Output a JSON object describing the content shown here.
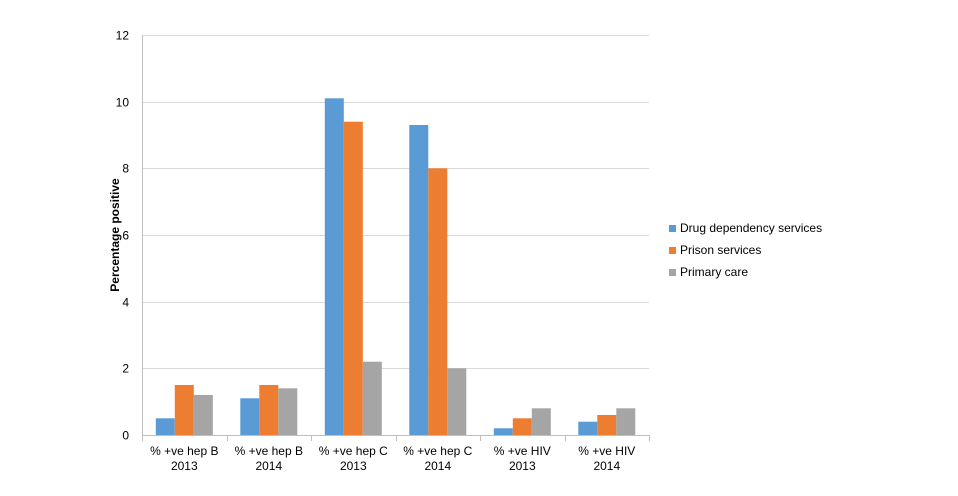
{
  "chart_data": {
    "type": "bar",
    "title": "",
    "xlabel": "",
    "ylabel": "Percentage positive",
    "ylim": [
      0,
      12
    ],
    "yticks": [
      0,
      2,
      4,
      6,
      8,
      10,
      12
    ],
    "grid": "horizontal",
    "legend_position": "right",
    "categories": [
      [
        "% +ve hep B",
        "2013"
      ],
      [
        "% +ve hep B",
        "2014"
      ],
      [
        "% +ve hep C",
        "2013"
      ],
      [
        "% +ve hep C",
        "2014"
      ],
      [
        "% +ve HIV",
        "2013"
      ],
      [
        "% +ve HIV",
        "2014"
      ]
    ],
    "series": [
      {
        "name": "Drug dependency services",
        "color": "#5B9BD5",
        "values": [
          0.5,
          1.1,
          10.1,
          9.3,
          0.2,
          0.4
        ]
      },
      {
        "name": "Prison services",
        "color": "#ED7D31",
        "values": [
          1.5,
          1.5,
          9.4,
          8.0,
          0.5,
          0.6
        ]
      },
      {
        "name": "Primary care",
        "color": "#A5A5A5",
        "values": [
          1.2,
          1.4,
          2.2,
          2.0,
          0.8,
          0.8
        ]
      }
    ]
  }
}
